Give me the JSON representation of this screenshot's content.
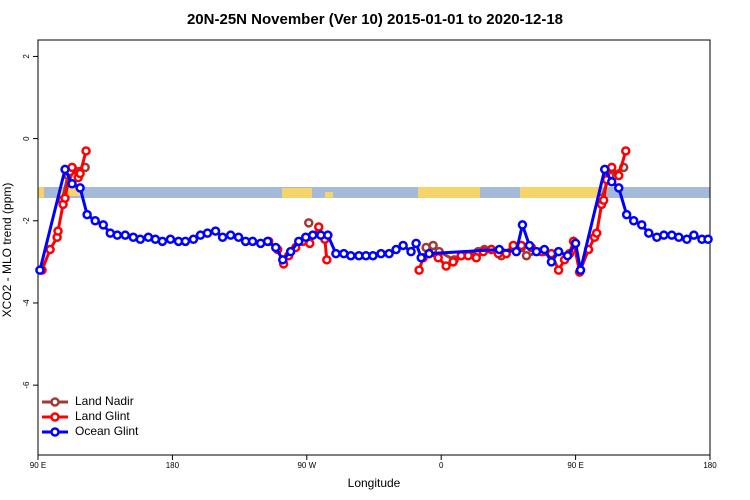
{
  "chart_data": {
    "type": "line",
    "title": "20N-25N November (Ver 10)   2015-01-01 to 2020-12-18",
    "x_label": "Longitude",
    "y_label": "XCO2 - MLO trend (ppm)",
    "xlim": [
      90,
      540
    ],
    "ylim": [
      -7.7,
      2.4
    ],
    "xticks": [
      {
        "value": 90,
        "label": "90 E"
      },
      180,
      {
        "value": 270,
        "label": "90 W"
      },
      {
        "value": 360,
        "label": "0"
      },
      {
        "value": 450,
        "label": "90 E"
      },
      {
        "value": 540,
        "label": "180"
      }
    ],
    "yticks": [
      -6,
      -4,
      -2,
      0,
      2
    ],
    "legend": "bottom-left",
    "series": [
      {
        "name": "Land Nadir",
        "color": "#a03a36",
        "x": [
          106.1,
          110.1,
          113.5,
          121.6,
          200,
          271.3,
          310,
          349.9,
          354.6,
          358.6,
          368.7,
          384.8,
          388.9,
          393.6,
          400.3,
          408.3,
          413.7,
          417.1,
          428.5,
          450,
          467.4,
          472.8,
          482.2
        ],
        "values": [
          -1.5,
          -0.9,
          -0.75,
          -0.7,
          null,
          -2.05,
          null,
          -2.65,
          -2.6,
          -2.75,
          -2.95,
          -2.75,
          -2.7,
          -2.7,
          -2.85,
          -2.6,
          -2.65,
          -2.85,
          -2.75,
          null,
          -1.45,
          -0.9,
          -0.7
        ]
      },
      {
        "name": "Land Glint",
        "color": "#ff0000",
        "x": [
          92.7,
          98.1,
          102.8,
          103.4,
          106.8,
          108.1,
          111.5,
          112.8,
          116.9,
          118.2,
          122.2,
          200,
          244.5,
          250.5,
          254.5,
          257.9,
          262.6,
          267.3,
          272,
          278,
          282.1,
          283.4,
          320,
          345.2,
          347.9,
          351.9,
          358,
          363.3,
          368,
          373.4,
          378.1,
          383.5,
          388.2,
          393.6,
          398.3,
          403.6,
          408.3,
          413.7,
          420.4,
          427.1,
          433.8,
          438.6,
          442.6,
          445.9,
          448.6,
          452.7,
          458.7,
          462.7,
          464.1,
          467.4,
          468.8,
          470.8,
          474.2,
          478.9,
          483.6
        ],
        "values": [
          -3.2,
          -2.7,
          -2.4,
          -2.25,
          -1.6,
          -1.45,
          -0.8,
          -0.7,
          -0.95,
          -0.85,
          -0.3,
          null,
          -2.5,
          -2.7,
          -3.05,
          -2.85,
          -2.65,
          -2.5,
          -2.55,
          -2.15,
          -2.45,
          -2.95,
          null,
          -3.2,
          -2.9,
          -2.8,
          -2.9,
          -3.1,
          -3.0,
          -2.85,
          -2.85,
          -2.9,
          -2.75,
          -2.7,
          -2.8,
          -2.8,
          -2.6,
          -2.6,
          -2.65,
          -2.75,
          -2.8,
          -3.2,
          -2.95,
          -2.8,
          -2.5,
          -3.25,
          -2.7,
          -2.4,
          -2.3,
          -1.6,
          -1.5,
          -1.0,
          -0.7,
          -0.9,
          -0.3
        ]
      },
      {
        "name": "Ocean Glint",
        "color": "#0000ff",
        "x": [
          91.3,
          108.1,
          112.8,
          118.2,
          122.9,
          128.3,
          133.7,
          138.4,
          143.1,
          148.4,
          153.8,
          158.5,
          163.9,
          168.6,
          173.3,
          178.7,
          184.1,
          188.7,
          194.1,
          198.8,
          203.5,
          208.9,
          213.6,
          219,
          224.3,
          229,
          233.7,
          239.1,
          243.8,
          249.2,
          253.9,
          259.2,
          264.6,
          269.3,
          274,
          279.4,
          284.1,
          289.5,
          294.8,
          299.5,
          304.9,
          309.6,
          314.3,
          319.7,
          325.1,
          329.8,
          334.5,
          339.8,
          343.2,
          346.6,
          351.9,
          398.9,
          410.3,
          414.4,
          419.1,
          423.8,
          429.1,
          433.8,
          438.6,
          444.6,
          450,
          453.3,
          469.5,
          474.2,
          478.9,
          484.2,
          488.9,
          494.3,
          499,
          504.4,
          509.1,
          514.4,
          519.1,
          524.5,
          529.2,
          534.6,
          538.7
        ],
        "values": [
          -3.2,
          -0.75,
          -1.1,
          -1.2,
          -1.85,
          -2.0,
          -2.1,
          -2.3,
          -2.35,
          -2.35,
          -2.4,
          -2.45,
          -2.4,
          -2.45,
          -2.5,
          -2.45,
          -2.5,
          -2.5,
          -2.45,
          -2.35,
          -2.3,
          -2.25,
          -2.4,
          -2.35,
          -2.4,
          -2.5,
          -2.5,
          -2.55,
          -2.5,
          -2.65,
          -2.95,
          -2.75,
          -2.5,
          -2.4,
          -2.35,
          -2.35,
          -2.35,
          -2.8,
          -2.8,
          -2.85,
          -2.85,
          -2.85,
          -2.85,
          -2.8,
          -2.8,
          -2.7,
          -2.6,
          -2.75,
          -2.55,
          -2.9,
          -2.8,
          -2.7,
          -2.75,
          -2.1,
          -2.6,
          -2.75,
          -2.7,
          -3.0,
          -2.75,
          -2.85,
          -2.55,
          -3.2,
          -0.75,
          -1.05,
          -1.2,
          -1.85,
          -2.0,
          -2.1,
          -2.3,
          -2.4,
          -2.35,
          -2.35,
          -2.4,
          -2.45,
          -2.35,
          -2.45,
          -2.45
        ]
      }
    ]
  }
}
